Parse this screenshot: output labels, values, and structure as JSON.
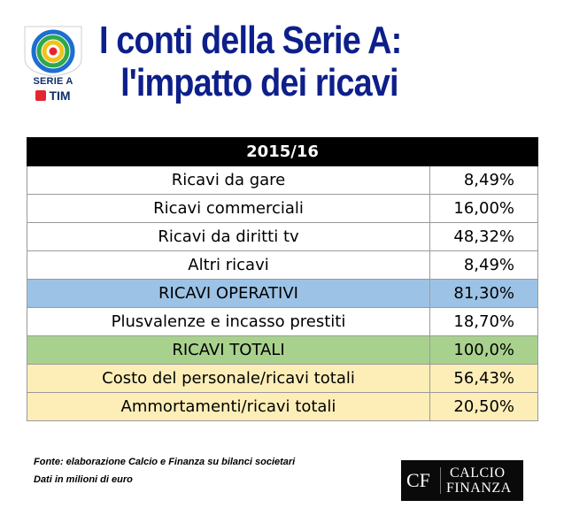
{
  "logo": {
    "brand": "SERIE A",
    "sponsor": "TIM"
  },
  "title": {
    "line1": "I conti della Serie A:",
    "line2": "l'impatto dei ricavi"
  },
  "table": {
    "header": "2015/16",
    "rows": [
      {
        "label": "Ricavi da gare",
        "value": "8,49%",
        "style": "plain"
      },
      {
        "label": "Ricavi commerciali",
        "value": "16,00%",
        "style": "plain"
      },
      {
        "label": "Ricavi da diritti tv",
        "value": "48,32%",
        "style": "plain"
      },
      {
        "label": "Altri ricavi",
        "value": "8,49%",
        "style": "plain"
      },
      {
        "label": "RICAVI OPERATIVI",
        "value": "81,30%",
        "style": "blue"
      },
      {
        "label": "Plusvalenze e incasso prestiti",
        "value": "18,70%",
        "style": "plain"
      },
      {
        "label": "RICAVI TOTALI",
        "value": "100,0%",
        "style": "green"
      },
      {
        "label": "Costo del personale/ricavi totali",
        "value": "56,43%",
        "style": "yellow"
      },
      {
        "label": "Ammortamenti/ricavi totali",
        "value": "20,50%",
        "style": "yellow"
      }
    ]
  },
  "footer": {
    "source_line1": "Fonte: elaborazione Calcio e Finanza su bilanci societari",
    "source_line2": "Dati in milioni di euro",
    "cf_mark": "CF",
    "cf_word1": "CALCIO",
    "cf_word2": "FINANZA"
  },
  "colors": {
    "title": "#0d1f8a",
    "header_bg": "#000000",
    "blue_row": "#9cc3e6",
    "green_row": "#a9d18e",
    "yellow_row": "#fdeeb8"
  },
  "icons": [
    "serie-a-shield-icon",
    "tim-mark-icon"
  ]
}
